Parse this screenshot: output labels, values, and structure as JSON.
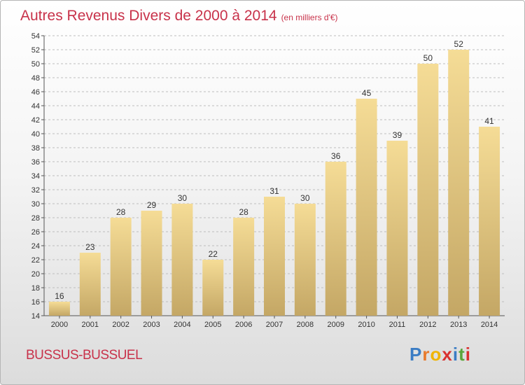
{
  "title": "Autres Revenus Divers de 2000 à 2014",
  "subtitle": "(en milliers d'€)",
  "location": "BUSSUS-BUSSUEL",
  "brand": {
    "letters": [
      "P",
      "r",
      "o",
      "x",
      "i",
      "t",
      "i"
    ],
    "colors": [
      "#3a7cc4",
      "#e8792b",
      "#f0b400",
      "#d9312f",
      "#3a7cc4",
      "#5aa53a",
      "#d9312f"
    ]
  },
  "colors": {
    "bar_top": "#f5dc96",
    "bar_bottom": "#c4a765",
    "title": "#c8324a",
    "grid": "#bdbdbd"
  },
  "chart_data": {
    "type": "bar",
    "categories": [
      "2000",
      "2001",
      "2002",
      "2003",
      "2004",
      "2005",
      "2006",
      "2007",
      "2008",
      "2009",
      "2010",
      "2011",
      "2012",
      "2013",
      "2014"
    ],
    "values": [
      16,
      23,
      28,
      29,
      30,
      22,
      28,
      31,
      30,
      36,
      45,
      39,
      50,
      52,
      41
    ],
    "ylim": [
      14,
      54
    ],
    "ytick_step": 2,
    "grid": "horizontal dashed",
    "legend": "none"
  }
}
